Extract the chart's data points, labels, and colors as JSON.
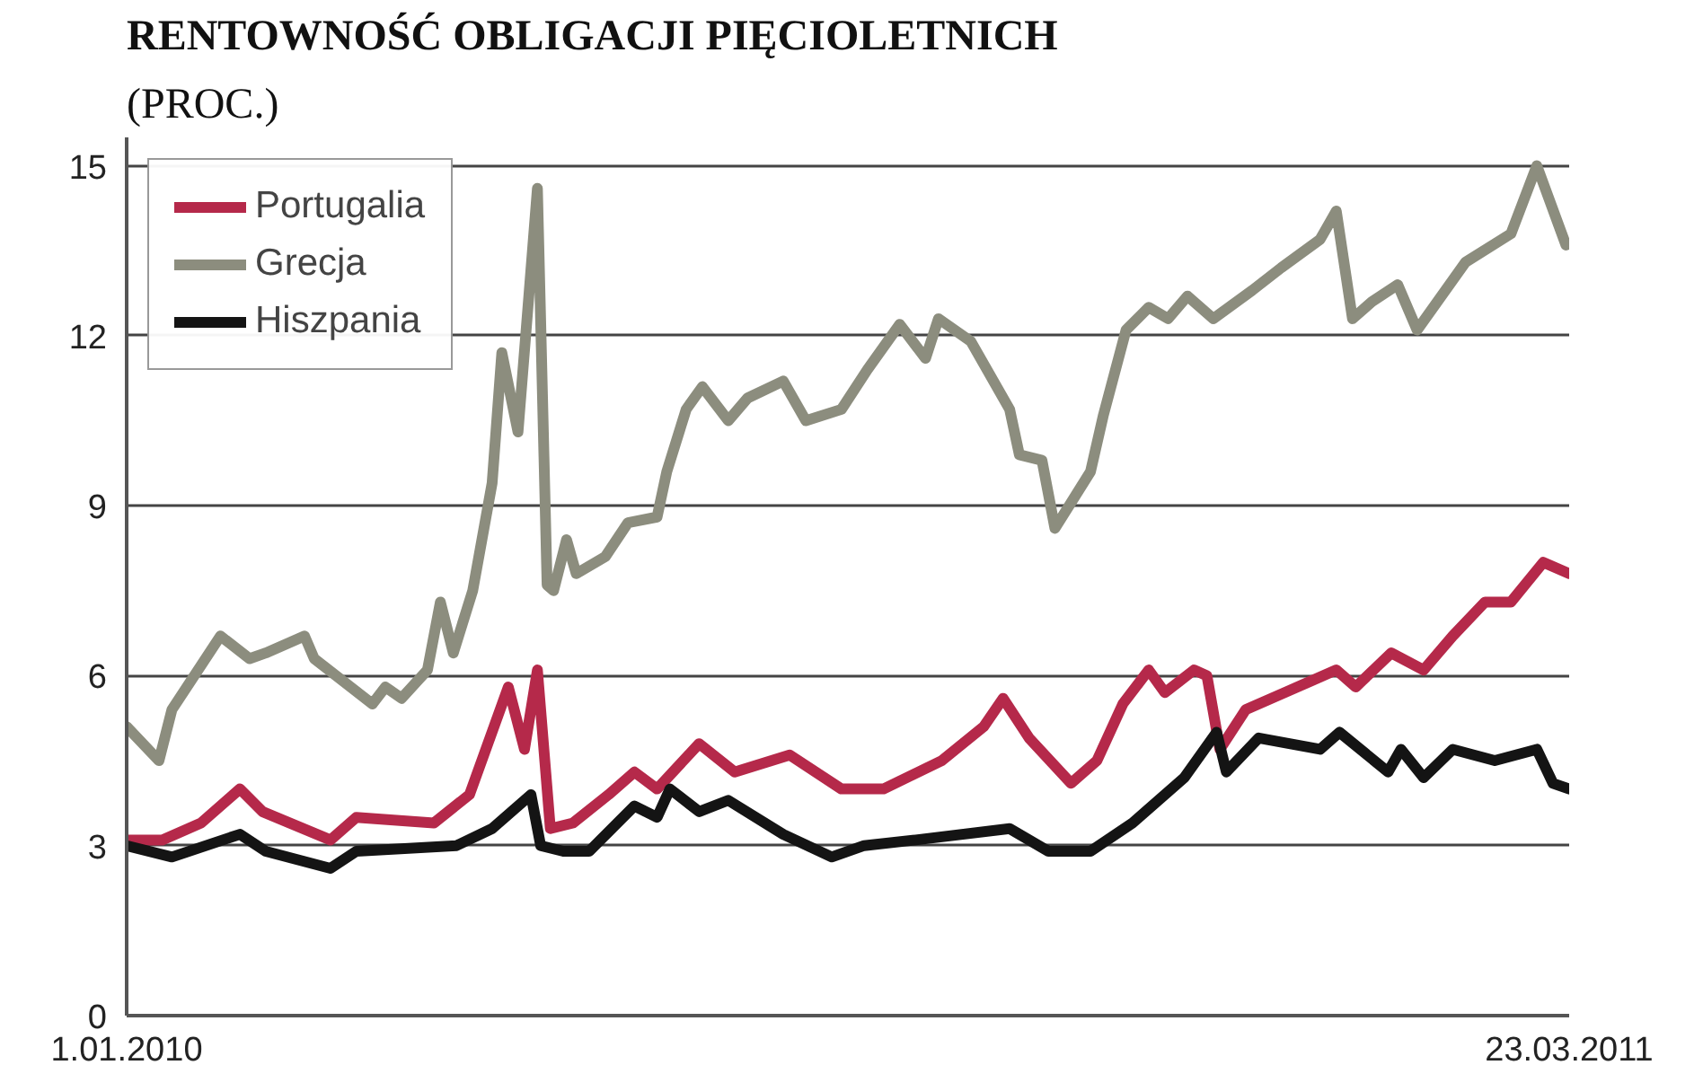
{
  "chart_data": {
    "type": "line",
    "title": "RENTOWNOŚĆ OBLIGACJI PIĘCIOLETNICH",
    "subtitle": "(PROC.)",
    "xlim": [
      "2010-01-01",
      "2011-03-23"
    ],
    "xticks": [
      {
        "value": "2010-01-01",
        "label": "1.01.2010"
      },
      {
        "value": "2011-03-23",
        "label": "23.03.2011"
      }
    ],
    "ylim": [
      0,
      15.5
    ],
    "yticks": [
      0,
      3,
      6,
      9,
      12,
      15
    ],
    "grid": "y",
    "legend": "top left",
    "line_style": "solid",
    "marker": "none",
    "series": [
      {
        "name": "Portugalia",
        "color": "#b5294a",
        "x": [
          "2010-01-01",
          "2010-01-12",
          "2010-01-24",
          "2010-02-05",
          "2010-02-12",
          "2010-03-05",
          "2010-03-13",
          "2010-04-06",
          "2010-04-17",
          "2010-04-29",
          "2010-05-04",
          "2010-05-08",
          "2010-05-12",
          "2010-05-19",
          "2010-05-30",
          "2010-06-07",
          "2010-06-14",
          "2010-06-27",
          "2010-07-08",
          "2010-07-25",
          "2010-08-10",
          "2010-08-23",
          "2010-09-10",
          "2010-09-23",
          "2010-09-29",
          "2010-10-07",
          "2010-10-20",
          "2010-10-28",
          "2010-11-05",
          "2010-11-13",
          "2010-11-18",
          "2010-11-27",
          "2010-12-01",
          "2010-12-05",
          "2010-12-13",
          "2010-12-29",
          "2011-01-10",
          "2011-01-16",
          "2011-01-27",
          "2011-02-06",
          "2011-02-15",
          "2011-02-25",
          "2011-03-05",
          "2011-03-15",
          "2011-03-23"
        ],
        "values": [
          3.1,
          3.1,
          3.4,
          4.0,
          3.6,
          3.1,
          3.5,
          3.4,
          3.9,
          5.8,
          4.7,
          6.1,
          3.3,
          3.4,
          3.9,
          4.3,
          4.0,
          4.8,
          4.3,
          4.6,
          4.0,
          4.0,
          4.5,
          5.1,
          5.6,
          4.9,
          4.1,
          4.5,
          5.5,
          6.1,
          5.7,
          6.1,
          6.0,
          4.7,
          5.4,
          5.8,
          6.1,
          5.8,
          6.4,
          6.1,
          6.7,
          7.3,
          7.3,
          8.0,
          7.8
        ]
      },
      {
        "name": "Grecja",
        "color": "#8c8d7e",
        "x": [
          "2010-01-01",
          "2010-01-11",
          "2010-01-15",
          "2010-01-30",
          "2010-02-08",
          "2010-02-13",
          "2010-02-25",
          "2010-02-28",
          "2010-03-18",
          "2010-03-22",
          "2010-03-27",
          "2010-04-04",
          "2010-04-08",
          "2010-04-12",
          "2010-04-18",
          "2010-04-24",
          "2010-04-27",
          "2010-05-02",
          "2010-05-08",
          "2010-05-11",
          "2010-05-13",
          "2010-05-17",
          "2010-05-20",
          "2010-05-29",
          "2010-06-05",
          "2010-06-14",
          "2010-06-17",
          "2010-06-23",
          "2010-06-28",
          "2010-07-06",
          "2010-07-12",
          "2010-07-23",
          "2010-07-30",
          "2010-08-10",
          "2010-08-18",
          "2010-08-28",
          "2010-09-05",
          "2010-09-09",
          "2010-09-19",
          "2010-10-01",
          "2010-10-04",
          "2010-10-11",
          "2010-10-15",
          "2010-10-26",
          "2010-10-30",
          "2010-11-06",
          "2010-11-13",
          "2010-11-19",
          "2010-11-25",
          "2010-12-03",
          "2010-12-15",
          "2010-12-24",
          "2011-01-05",
          "2011-01-10",
          "2011-01-15",
          "2011-01-21",
          "2011-01-29",
          "2011-02-04",
          "2011-02-19",
          "2011-03-05",
          "2011-03-13",
          "2011-03-22"
        ],
        "values": [
          5.1,
          4.5,
          5.4,
          6.7,
          6.3,
          6.4,
          6.7,
          6.3,
          5.5,
          5.8,
          5.6,
          6.1,
          7.3,
          6.4,
          7.5,
          9.4,
          11.7,
          10.3,
          14.6,
          7.6,
          7.5,
          8.4,
          7.8,
          8.1,
          8.7,
          8.8,
          9.6,
          10.7,
          11.1,
          10.5,
          10.9,
          11.2,
          10.5,
          10.7,
          11.4,
          12.2,
          11.6,
          12.3,
          11.9,
          10.7,
          9.9,
          9.8,
          8.6,
          9.6,
          10.6,
          12.1,
          12.5,
          12.3,
          12.7,
          12.3,
          12.8,
          13.2,
          13.7,
          14.2,
          12.3,
          12.6,
          12.9,
          12.1,
          13.3,
          13.8,
          15.0,
          13.6
        ]
      },
      {
        "name": "Hiszpania",
        "color": "#141414",
        "x": [
          "2010-01-01",
          "2010-01-15",
          "2010-02-05",
          "2010-02-13",
          "2010-03-05",
          "2010-03-13",
          "2010-04-13",
          "2010-04-24",
          "2010-05-06",
          "2010-05-09",
          "2010-05-16",
          "2010-05-24",
          "2010-06-07",
          "2010-06-14",
          "2010-06-18",
          "2010-06-27",
          "2010-07-06",
          "2010-07-23",
          "2010-08-07",
          "2010-08-17",
          "2010-09-02",
          "2010-10-01",
          "2010-10-13",
          "2010-10-26",
          "2010-11-08",
          "2010-11-24",
          "2010-12-04",
          "2010-12-07",
          "2010-12-17",
          "2011-01-05",
          "2011-01-11",
          "2011-01-26",
          "2011-01-30",
          "2011-02-06",
          "2011-02-15",
          "2011-02-28",
          "2011-03-13",
          "2011-03-18",
          "2011-03-23"
        ],
        "values": [
          3.0,
          2.8,
          3.2,
          2.9,
          2.6,
          2.9,
          3.0,
          3.3,
          3.9,
          3.0,
          2.9,
          2.9,
          3.7,
          3.5,
          4.0,
          3.6,
          3.8,
          3.2,
          2.8,
          3.0,
          3.1,
          3.3,
          2.9,
          2.9,
          3.4,
          4.2,
          5.0,
          4.3,
          4.9,
          4.7,
          5.0,
          4.3,
          4.7,
          4.2,
          4.7,
          4.5,
          4.7,
          4.1,
          4.0
        ]
      }
    ]
  }
}
